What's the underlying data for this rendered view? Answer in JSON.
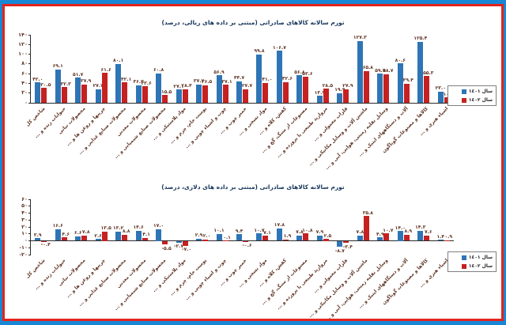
{
  "frame": {
    "outer_border_color": "#1887d5",
    "inner_border_color": "#e3241d",
    "background": "#ffffff"
  },
  "text_colors": {
    "title": "#16365c",
    "labels": "#5e3222"
  },
  "legend": {
    "position": "right",
    "items": [
      {
        "label": "سال ١٤٠١",
        "color": "#2e75b6"
      },
      {
        "label": "سال ١٤٠٢",
        "color": "#c62121"
      }
    ]
  },
  "chart_data": [
    {
      "type": "bar",
      "title": "تورم سالانه کالاهای صادراتی (مبتنی بر داده های ریالی، درصد)",
      "xlabel": "",
      "ylabel": "",
      "ylim": [
        0,
        140
      ],
      "grid": false,
      "legend_position": "right",
      "yticks": [
        {
          "v": 140,
          "label": "۱۴۰"
        },
        {
          "v": 120,
          "label": "۱۲۰"
        },
        {
          "v": 100,
          "label": "۱۰۰"
        },
        {
          "v": 80,
          "label": "۸۰"
        },
        {
          "v": 60,
          "label": "۶۰"
        },
        {
          "v": 40,
          "label": "۴۰"
        },
        {
          "v": 20,
          "label": "۲۰"
        },
        {
          "v": 0,
          "label": "۰"
        }
      ],
      "categories": [
        "شاخص کل",
        "حیوانات زنده و ...",
        "محصولات نباتی",
        "چربیها و روغن ها و ...",
        "محصولات صنایع غذایی و ...",
        "محصولات معدنی",
        "محصولات صنایع شیمیایی و ...",
        "مواد پلاستیکی و ...",
        "پوست خام، چرم و ...",
        "چوب و اشیاء چوبی و ...",
        "خمیر چوب و ...",
        "مواد نسجی و ...",
        "کفش، کلاه و ...",
        "مصنوعات از سنگ، گچ و ...",
        "مروارید طبیعی یا پرورده و ...",
        "فلزات معمولی و ...",
        "ماشین آلات و وسایل مکانیکی و ...",
        "وسایل نقلیه زمینی، هوایی، آبی و ...",
        "آلات و دستگاههای اپتیک و ...",
        "کالاها و مصنوعات گوناگون",
        "اشیاء هنری و ..."
      ],
      "series": [
        {
          "name": "سال ١٤٠١",
          "color": "#2e75b6",
          "values": [
            42.0,
            69.1,
            51.7,
            27.7,
            80.1,
            36.3,
            60.8,
            27.1,
            37.7,
            56.9,
            44.7,
            99.8,
            106.7,
            56.8,
            13.9,
            19.9,
            127.3,
            59.7,
            80.6,
            125.4,
            23.0
          ],
          "labels": [
            "۴۲.۰",
            "۶۹.۱",
            "۵۱.۷",
            "۲۷.۷",
            "۸۰.۱",
            "۳۶.۳",
            "۶۰.۸",
            "۲۷.۱",
            "۳۷.۷",
            "۵۶.۹",
            "۴۴.۷",
            "۹۹.۸",
            "۱۰۶.۷",
            "۵۶.۸",
            "۱۳.۹",
            "۱۹.۹",
            "۱۲۷.۳",
            "۵۹.۷",
            "۸۰.۶",
            "۱۲۵.۴",
            "۲۳.۰"
          ]
        },
        {
          "name": "سال ١٤٠٢",
          "color": "#c62121",
          "values": [
            30.5,
            32.3,
            37.9,
            61.6,
            42.1,
            33.6,
            15.5,
            28.4,
            36.5,
            37.1,
            27.7,
            41.0,
            42.6,
            53.6,
            28.5,
            27.9,
            65.8,
            58.7,
            39.4,
            55.3,
            10.6
          ],
          "labels": [
            "۳۰.۵",
            "۳۲.۳",
            "۳۷.۹",
            "۶۱.۶",
            "۴۲.۱",
            "۳۳.۶",
            "۱۵.۵",
            "۲۸.۴",
            "۳۶.۵",
            "۳۷.۱",
            "۲۷.۷",
            "۴۱.۰",
            "۴۲.۶",
            "۵۳.۶",
            "۲۸.۵",
            "۲۷.۹",
            "۶۵.۸",
            "۵۸.۷",
            "۳۹.۴",
            "۵۵.۳",
            "۱۰.۶"
          ]
        }
      ]
    },
    {
      "type": "bar",
      "title": "تورم سالانه کالاهای صادراتی (مبتنی بر داده های دلاری، درصد)",
      "xlabel": "",
      "ylabel": "",
      "ylim": [
        -20,
        60
      ],
      "grid": false,
      "legend_position": "right",
      "yticks": [
        {
          "v": 60,
          "label": "۶۰"
        },
        {
          "v": 50,
          "label": "۵۰"
        },
        {
          "v": 40,
          "label": "۴۰"
        },
        {
          "v": 30,
          "label": "۳۰"
        },
        {
          "v": 20,
          "label": "۲۰"
        },
        {
          "v": 10,
          "label": "۱۰"
        },
        {
          "v": 0,
          "label": "۰"
        },
        {
          "v": -10,
          "label": "-۱۰"
        },
        {
          "v": -20,
          "label": "-۲۰"
        }
      ],
      "categories": [
        "شاخص کل",
        "حیوانات زنده و ...",
        "محصولات نباتی",
        "چربیها و روغن ها و ...",
        "محصولات صنایع غذایی و ...",
        "محصولات معدنی",
        "محصولات صنایع شیمیایی و ...",
        "مواد پلاستیکی و ...",
        "پوست خام، چرم و ...",
        "چوب و اشیاء چوبی و ...",
        "خمیر چوب و ...",
        "مواد نسجی و ...",
        "کفش، کلاه و ...",
        "مصنوعات از سنگ، گچ و ...",
        "مروارید طبیعی یا پرورده و ...",
        "فلزات معمولی و ...",
        "ماشین آلات و وسایل مکانیکی و ...",
        "وسایل نقلیه زمینی، هوایی، آبی و ...",
        "آلات و دستگاههای اپتیک و ...",
        "کالاها و مصنوعات گوناگون",
        "اشیاء هنری و ..."
      ],
      "series": [
        {
          "name": "سال ١٤٠١",
          "color": "#2e75b6",
          "values": [
            3.9,
            16.6,
            6.6,
            2.6,
            13.2,
            14.6,
            17.0,
            -2.7,
            2.9,
            10.1,
            9.4,
            10.7,
            17.8,
            7.8,
            7.9,
            -8.7,
            7.8,
            4.9,
            14.0,
            14.3,
            1.4
          ],
          "labels": [
            "۳.۹",
            "۱۶.۶",
            "۶.۶",
            "۲.۶",
            "۱۳.۲",
            "۱۴.۶",
            "۱۷.۰",
            "-۲.۷",
            "۲.۹",
            "۱۰.۱",
            "۹.۴",
            "۱۰.۷",
            "۱۷.۸",
            "۷.۸",
            "۷.۹",
            "-۸.۷",
            "۷.۸",
            "۴.۹",
            "۱۴.۰",
            "۱۴.۳",
            "۱.۴"
          ]
        },
        {
          "name": "سال ١٤٠٢",
          "color": "#c62121",
          "values": [
            -0.4,
            4.6,
            7.8,
            13.5,
            8.8,
            4.1,
            -5.5,
            -7.0,
            2.0,
            0.1,
            -0.6,
            7.1,
            1.9,
            10.8,
            2.5,
            -3.4,
            35.8,
            10.7,
            8.9,
            7.6,
            0.9
          ],
          "labels": [
            "-۰.۴",
            "۴.۶",
            "۷.۸",
            "۱۳.۵",
            "۸.۸",
            "۴.۱",
            "-۵.۵",
            "-۷.۰",
            "۲.۰",
            "۰.۱",
            "-۰.۶",
            "۷.۱",
            "۱.۹",
            "۱۰.۸",
            "۲.۵",
            "-۳.۴",
            "۳۵.۸",
            "۱۰.۷",
            "۸.۹",
            "۷.۶",
            "۰.۹"
          ]
        }
      ]
    }
  ]
}
